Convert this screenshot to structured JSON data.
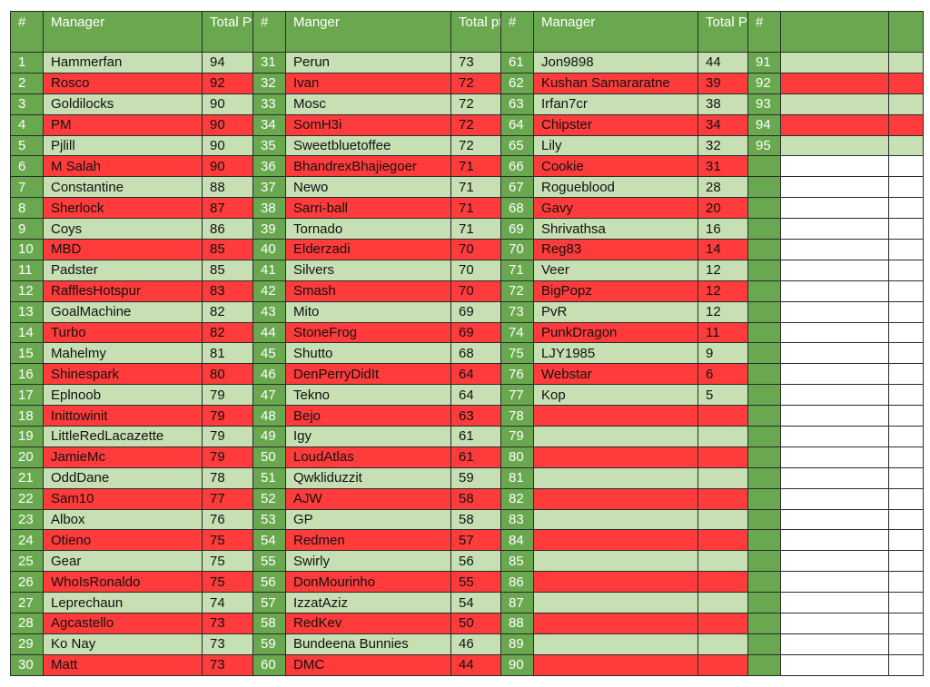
{
  "headers": [
    "#",
    "Manager",
    "Total Pts",
    "#",
    "Manger",
    "Total pts",
    "#",
    "Manager",
    "Total Pts",
    "#",
    "",
    ""
  ],
  "rows": [
    [
      "1",
      "Hammerfan",
      "94",
      "31",
      "Perun",
      "73",
      "61",
      "Jon9898",
      "44",
      "91"
    ],
    [
      "2",
      "Rosco",
      "92",
      "32",
      "Ivan",
      "72",
      "62",
      "Kushan Samararatne",
      "39",
      "92"
    ],
    [
      "3",
      "Goldilocks",
      "90",
      "33",
      "Mosc",
      "72",
      "63",
      "Irfan7cr",
      "38",
      "93"
    ],
    [
      "4",
      "PM",
      "90",
      "34",
      "SomH3i",
      "72",
      "64",
      "Chipster",
      "34",
      "94"
    ],
    [
      "5",
      "Pjlill",
      "90",
      "35",
      "Sweetbluetoffee",
      "72",
      "65",
      "Lily",
      "32",
      "95"
    ],
    [
      "6",
      "M Salah",
      "90",
      "36",
      "BhandrexBhajiegoer",
      "71",
      "66",
      "Cookie",
      "31",
      ""
    ],
    [
      "7",
      "Constantine",
      "88",
      "37",
      "Newo",
      "71",
      "67",
      "Rogueblood",
      "28",
      ""
    ],
    [
      "8",
      "Sherlock",
      "87",
      "38",
      "Sarri-ball",
      "71",
      "68",
      "Gavy",
      "20",
      ""
    ],
    [
      "9",
      "Coys",
      "86",
      "39",
      "Tornado",
      "71",
      "69",
      "Shrivathsa",
      "16",
      ""
    ],
    [
      "10",
      "MBD",
      "85",
      "40",
      "Elderzadi",
      "70",
      "70",
      "Reg83",
      "14",
      ""
    ],
    [
      "11",
      "Padster",
      "85",
      "41",
      "Silvers",
      "70",
      "71",
      "Veer",
      "12",
      ""
    ],
    [
      "12",
      "RafflesHotspur",
      "83",
      "42",
      "Smash",
      "70",
      "72",
      "BigPopz",
      "12",
      ""
    ],
    [
      "13",
      "GoalMachine",
      "82",
      "43",
      "Mito",
      "69",
      "73",
      "PvR",
      "12",
      ""
    ],
    [
      "14",
      "Turbo",
      "82",
      "44",
      "StoneFrog",
      "69",
      "74",
      "PunkDragon",
      "11",
      ""
    ],
    [
      "15",
      "Mahelmy",
      "81",
      "45",
      "Shutto",
      "68",
      "75",
      "LJY1985",
      "9",
      ""
    ],
    [
      "16",
      "Shinespark",
      "80",
      "46",
      "DenPerryDidIt",
      "64",
      "76",
      "Webstar",
      "6",
      ""
    ],
    [
      "17",
      "Eplnoob",
      "79",
      "47",
      "Tekno",
      "64",
      "77",
      "Kop",
      "5",
      ""
    ],
    [
      "18",
      "Inittowinit",
      "79",
      "48",
      "Bejo",
      "63",
      "78",
      "",
      "",
      ""
    ],
    [
      "19",
      "LittleRedLacazette",
      "79",
      "49",
      "Igy",
      "61",
      "79",
      "",
      "",
      ""
    ],
    [
      "20",
      "JamieMc",
      "79",
      "50",
      "LoudAtlas",
      "61",
      "80",
      "",
      "",
      ""
    ],
    [
      "21",
      "OddDane",
      "78",
      "51",
      "Qwkliduzzit",
      "59",
      "81",
      "",
      "",
      ""
    ],
    [
      "22",
      "Sam10",
      "77",
      "52",
      "AJW",
      "58",
      "82",
      "",
      "",
      ""
    ],
    [
      "23",
      "Albox",
      "76",
      "53",
      "GP",
      "58",
      "83",
      "",
      "",
      ""
    ],
    [
      "24",
      "Otieno",
      "75",
      "54",
      "Redmen",
      "57",
      "84",
      "",
      "",
      ""
    ],
    [
      "25",
      "Gear",
      "75",
      "55",
      "Swirly",
      "56",
      "85",
      "",
      "",
      ""
    ],
    [
      "26",
      "WhoIsRonaldo",
      "75",
      "56",
      "DonMourinho",
      "55",
      "86",
      "",
      "",
      ""
    ],
    [
      "27",
      "Leprechaun",
      "74",
      "57",
      "IzzatAziz",
      "54",
      "87",
      "",
      "",
      ""
    ],
    [
      "28",
      "Agcastello",
      "73",
      "58",
      "RedKev",
      "50",
      "88",
      "",
      "",
      ""
    ],
    [
      "29",
      "Ko Nay",
      "73",
      "59",
      "Bundeena Bunnies",
      "46",
      "89",
      "",
      "",
      ""
    ],
    [
      "30",
      "Matt",
      "73",
      "60",
      "DMC",
      "44",
      "90",
      "",
      "",
      ""
    ]
  ]
}
